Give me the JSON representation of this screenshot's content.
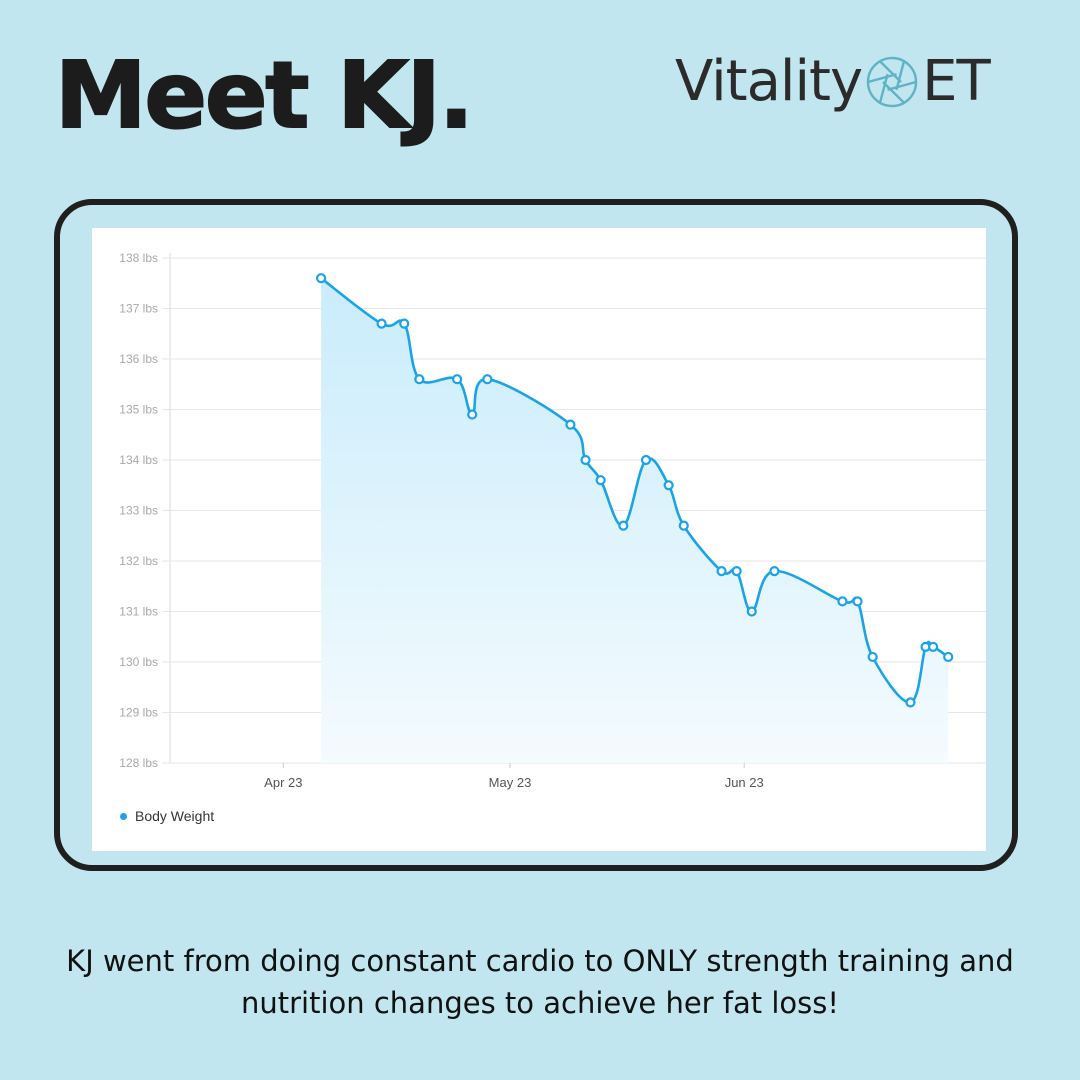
{
  "header": {
    "title": "Meet KJ.",
    "brand_left": "Vitality",
    "brand_right": "ET"
  },
  "colors": {
    "background": "#c2e6ef",
    "series": "#1aa3e8",
    "fill_top": "#c9ecfb",
    "fill_bottom": "#f4fbfe",
    "grid": "#e6e6e6",
    "brand_icon": "#5fb3c4"
  },
  "chart_data": {
    "type": "area",
    "title": "",
    "xlabel": "",
    "ylabel": "",
    "ylim": [
      128,
      138
    ],
    "y_ticks": [
      128,
      129,
      130,
      131,
      132,
      133,
      134,
      135,
      136,
      137,
      138
    ],
    "y_unit": "lbs",
    "x_ticks": [
      {
        "label": "Apr 23",
        "day": 0
      },
      {
        "label": "May 23",
        "day": 30
      },
      {
        "label": "Jun 23",
        "day": 61
      }
    ],
    "xlim": [
      -15,
      93
    ],
    "grid": true,
    "legend": "bottom-left",
    "series": [
      {
        "name": "Body Weight",
        "days": [
          5,
          13,
          16,
          18,
          23,
          25,
          27,
          38,
          40,
          42,
          45,
          48,
          51,
          53,
          58,
          60,
          62,
          65,
          74,
          76,
          78,
          83,
          85,
          86,
          88
        ],
        "values": [
          137.6,
          136.7,
          136.7,
          135.6,
          135.6,
          134.9,
          135.6,
          134.7,
          134.0,
          133.6,
          132.7,
          134.0,
          133.5,
          132.7,
          131.8,
          131.8,
          131.0,
          131.8,
          131.2,
          131.2,
          130.1,
          129.2,
          130.3,
          130.3,
          130.1
        ]
      }
    ]
  },
  "caption": "KJ went from doing constant cardio to ONLY strength training and nutrition changes to achieve her fat loss!"
}
